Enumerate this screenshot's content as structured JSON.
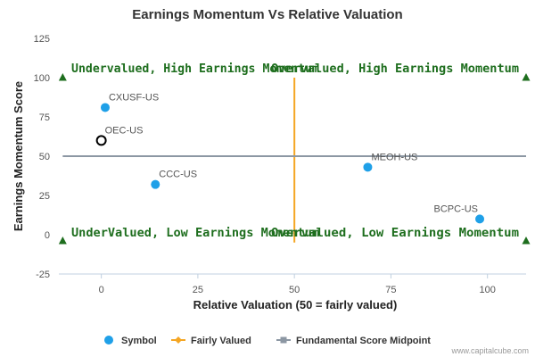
{
  "chart_data": {
    "type": "scatter",
    "title": "Earnings Momentum Vs Relative Valuation",
    "xlabel": "Relative Valuation (50 = fairly valued)",
    "ylabel": "Earnings Momentum Score",
    "xlim": [
      -11,
      110
    ],
    "ylim": [
      -25,
      125
    ],
    "x_ticks": [
      0,
      25,
      50,
      75,
      100
    ],
    "y_ticks": [
      -25,
      0,
      25,
      50,
      75,
      100,
      125
    ],
    "grid": false,
    "legend_position": "bottom-center",
    "series": [
      {
        "name": "Symbol",
        "color": "#1fa0e8",
        "points": [
          {
            "label": "CXUSF-US",
            "x": 1,
            "y": 81
          },
          {
            "label": "OEC-US",
            "x": 0,
            "y": 60,
            "highlight": true
          },
          {
            "label": "CCC-US",
            "x": 14,
            "y": 32
          },
          {
            "label": "MEOH-US",
            "x": 69,
            "y": 43
          },
          {
            "label": "BCPC-US",
            "x": 98,
            "y": 10
          }
        ]
      }
    ],
    "reference_lines": [
      {
        "name": "Fairly Valued",
        "orientation": "vertical",
        "value": 50,
        "from": -5,
        "to": 100,
        "color": "#f5a623"
      },
      {
        "name": "Fundamental Score Midpoint",
        "orientation": "horizontal",
        "value": 50,
        "from": -10,
        "to": 110,
        "color": "#8c97a3"
      }
    ],
    "quadrant_labels": [
      {
        "text": "Undervalued, High Earnings Momentum",
        "quadrant": "top-left"
      },
      {
        "text": "Overvalued, High Earnings Momentum",
        "quadrant": "top-right"
      },
      {
        "text": "UnderValued, Low Earnings Momentum",
        "quadrant": "bottom-left"
      },
      {
        "text": "Overvalued, Low Earnings Momentum",
        "quadrant": "bottom-right"
      }
    ],
    "corner_markers": [
      {
        "x": -10,
        "y": 100
      },
      {
        "x": 110,
        "y": 100
      },
      {
        "x": -10,
        "y": -4
      },
      {
        "x": 110,
        "y": -4
      }
    ],
    "corner_marker_color": "#1e6e1e",
    "legend": [
      {
        "label": "Symbol",
        "kind": "dot",
        "color": "#1fa0e8"
      },
      {
        "label": "Fairly Valued",
        "kind": "line-diamond",
        "color": "#f5a623"
      },
      {
        "label": "Fundamental Score Midpoint",
        "kind": "line-square",
        "color": "#8c97a3"
      }
    ]
  },
  "credit": "www.capitalcube.com"
}
